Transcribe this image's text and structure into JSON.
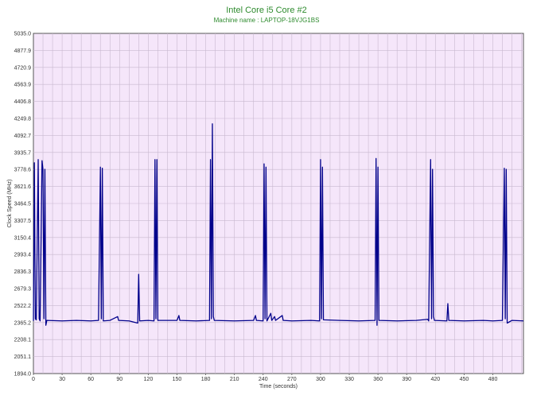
{
  "chart_data": {
    "type": "line",
    "title": "Intel Core i5 Core #2",
    "subtitle": "Machine name : LAPTOP-18VJG1BS",
    "xlabel": "Time (seconds)",
    "ylabel": "Clock Speed (MHz)",
    "xlim": [
      0,
      512
    ],
    "ylim": [
      1894.0,
      5035.0
    ],
    "x_ticks": [
      0,
      30,
      60,
      90,
      120,
      150,
      180,
      210,
      240,
      270,
      300,
      330,
      360,
      390,
      420,
      450,
      480
    ],
    "y_ticks": [
      1894.0,
      2051.1,
      2208.1,
      2365.2,
      2522.2,
      2679.3,
      2836.3,
      2993.4,
      3150.4,
      3307.5,
      3464.5,
      3621.6,
      3778.6,
      3935.7,
      4092.7,
      4249.8,
      4406.8,
      4563.9,
      4720.9,
      4877.9,
      5035.0
    ],
    "grid": true,
    "series": [
      {
        "color": "#00008b",
        "points": [
          [
            0,
            2380
          ],
          [
            1,
            3840
          ],
          [
            2,
            2400
          ],
          [
            3,
            2390
          ],
          [
            5,
            3870
          ],
          [
            6,
            2400
          ],
          [
            7,
            2380
          ],
          [
            9,
            3860
          ],
          [
            10,
            3780
          ],
          [
            11,
            2400
          ],
          [
            12,
            3780
          ],
          [
            13,
            2340
          ],
          [
            14,
            2385
          ],
          [
            30,
            2380
          ],
          [
            45,
            2385
          ],
          [
            60,
            2380
          ],
          [
            68,
            2385
          ],
          [
            70,
            3800
          ],
          [
            71,
            2400
          ],
          [
            72,
            3790
          ],
          [
            73,
            2380
          ],
          [
            80,
            2385
          ],
          [
            88,
            2420
          ],
          [
            89,
            2385
          ],
          [
            100,
            2380
          ],
          [
            109,
            2360
          ],
          [
            110,
            2810
          ],
          [
            111,
            2380
          ],
          [
            120,
            2385
          ],
          [
            126,
            2380
          ],
          [
            127,
            3870
          ],
          [
            128,
            2400
          ],
          [
            129,
            3870
          ],
          [
            130,
            2385
          ],
          [
            150,
            2385
          ],
          [
            152,
            2430
          ],
          [
            153,
            2385
          ],
          [
            170,
            2380
          ],
          [
            184,
            2385
          ],
          [
            185,
            3870
          ],
          [
            186,
            2400
          ],
          [
            187,
            4200
          ],
          [
            188,
            2420
          ],
          [
            189,
            2385
          ],
          [
            210,
            2380
          ],
          [
            230,
            2385
          ],
          [
            232,
            2430
          ],
          [
            233,
            2385
          ],
          [
            240,
            2380
          ],
          [
            241,
            3830
          ],
          [
            242,
            2400
          ],
          [
            243,
            3800
          ],
          [
            244,
            2380
          ],
          [
            248,
            2450
          ],
          [
            249,
            2385
          ],
          [
            252,
            2420
          ],
          [
            253,
            2385
          ],
          [
            260,
            2430
          ],
          [
            261,
            2385
          ],
          [
            270,
            2380
          ],
          [
            290,
            2385
          ],
          [
            299,
            2380
          ],
          [
            300,
            3870
          ],
          [
            301,
            2400
          ],
          [
            302,
            3800
          ],
          [
            303,
            2390
          ],
          [
            320,
            2385
          ],
          [
            340,
            2380
          ],
          [
            357,
            2385
          ],
          [
            358,
            3880
          ],
          [
            359,
            2340
          ],
          [
            360,
            3800
          ],
          [
            361,
            2385
          ],
          [
            380,
            2380
          ],
          [
            400,
            2385
          ],
          [
            412,
            2395
          ],
          [
            413,
            2380
          ],
          [
            415,
            3870
          ],
          [
            416,
            2400
          ],
          [
            417,
            3780
          ],
          [
            418,
            2420
          ],
          [
            419,
            2385
          ],
          [
            432,
            2380
          ],
          [
            433,
            2540
          ],
          [
            434,
            2385
          ],
          [
            450,
            2380
          ],
          [
            470,
            2385
          ],
          [
            480,
            2380
          ],
          [
            490,
            2385
          ],
          [
            492,
            3790
          ],
          [
            493,
            2400
          ],
          [
            494,
            3780
          ],
          [
            495,
            2360
          ],
          [
            500,
            2385
          ],
          [
            512,
            2380
          ]
        ]
      }
    ]
  }
}
